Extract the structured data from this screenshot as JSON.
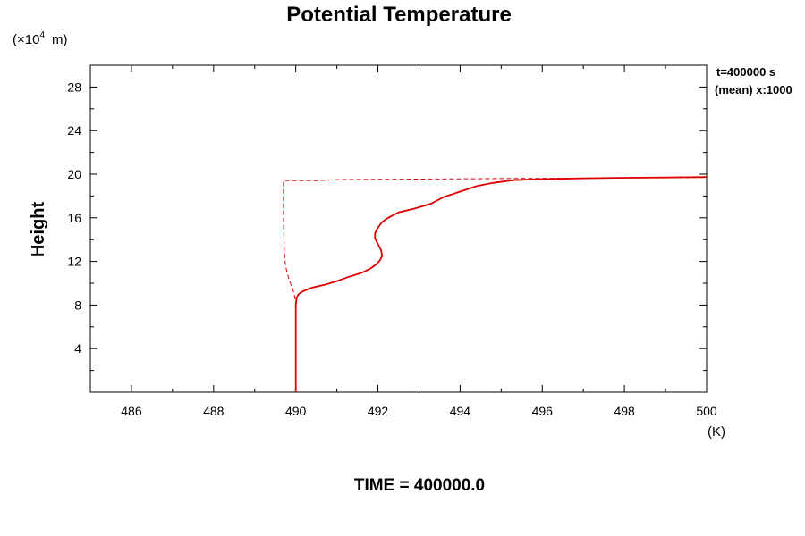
{
  "chart_data": {
    "type": "line",
    "title": "Potential Temperature",
    "ylabel": "Height",
    "y_unit_prefix": "(×10",
    "y_unit_exponent": "4",
    "y_unit_suffix": "m)",
    "x_unit": "(K)",
    "xlim": [
      485,
      500
    ],
    "ylim": [
      0,
      30
    ],
    "xticks": [
      "486",
      "488",
      "490",
      "492",
      "494",
      "496",
      "498",
      "500"
    ],
    "yticks": [
      "4",
      "8",
      "12",
      "16",
      "20",
      "24",
      "28"
    ],
    "grid": false,
    "annotation_time": "t=400000 s",
    "annotation_mean": "(mean) x:1000",
    "footer": "TIME = 400000.0",
    "series": [
      {
        "style": "solid",
        "color": "#dd0000",
        "x": [
          490.0,
          490.0,
          490.0,
          490.02,
          490.05,
          490.1,
          490.2,
          490.4,
          490.7,
          491.0,
          491.3,
          491.6,
          491.8,
          491.95,
          492.05,
          492.1,
          492.08,
          492.0,
          491.93,
          491.93,
          492.0,
          492.1,
          492.25,
          492.5,
          492.9,
          493.3,
          493.6,
          494.0,
          494.4,
          494.8,
          495.3,
          496.0,
          497.0,
          498.0,
          499.0,
          500.0
        ],
        "y": [
          0.0,
          4.0,
          8.0,
          8.6,
          8.9,
          9.1,
          9.3,
          9.6,
          9.85,
          10.2,
          10.6,
          10.95,
          11.3,
          11.7,
          12.1,
          12.5,
          13.0,
          13.6,
          14.1,
          14.6,
          15.1,
          15.6,
          16.0,
          16.5,
          16.85,
          17.3,
          17.9,
          18.4,
          18.9,
          19.2,
          19.45,
          19.55,
          19.62,
          19.67,
          19.7,
          19.75
        ]
      },
      {
        "style": "dashed",
        "color": "#dd0000",
        "x": [
          490.0,
          490.0,
          490.0,
          489.98,
          489.93,
          489.87,
          489.8,
          489.75,
          489.72,
          489.7,
          489.7,
          490.5,
          491.0,
          493.0,
          495.0,
          500.0
        ],
        "y": [
          0.0,
          4.0,
          8.0,
          8.7,
          9.4,
          10.0,
          10.8,
          11.6,
          13.0,
          16.0,
          19.4,
          19.4,
          19.5,
          19.55,
          19.6,
          19.7
        ]
      }
    ]
  }
}
